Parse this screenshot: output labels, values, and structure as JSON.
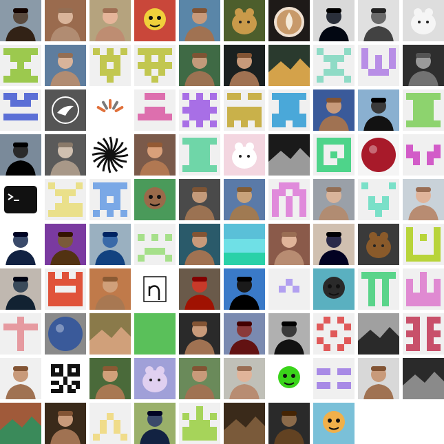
{
  "gallery": {
    "tiles": [
      {
        "kind": "photo",
        "name": "avatar-man-sunglasses",
        "bg": "#8a9aa8",
        "fg": "#5a4a3e",
        "shape": "person"
      },
      {
        "kind": "photo",
        "name": "avatar-bald-man-brick",
        "bg": "#9a6b4e",
        "fg": "#d9b49a",
        "shape": "person"
      },
      {
        "kind": "photo",
        "name": "avatar-smiling-hat",
        "bg": "#b5a37e",
        "fg": "#e6b59a",
        "shape": "person"
      },
      {
        "kind": "photo",
        "name": "avatar-cartoon-bird",
        "bg": "#c9473a",
        "fg": "#f0d03b",
        "shape": "cartoon"
      },
      {
        "kind": "photo",
        "name": "avatar-man-outdoor",
        "bg": "#5a86a8",
        "fg": "#c89a7a",
        "shape": "person"
      },
      {
        "kind": "photo",
        "name": "avatar-leopard",
        "bg": "#4d5e2c",
        "fg": "#c99a4a",
        "shape": "animal"
      },
      {
        "kind": "photo",
        "name": "avatar-latte-art",
        "bg": "#1e1a18",
        "fg": "#c89a6a",
        "shape": "cup"
      },
      {
        "kind": "photo",
        "name": "avatar-man-suit",
        "bg": "#d9d9d9",
        "fg": "#2a2f3a",
        "shape": "person"
      },
      {
        "kind": "photo",
        "name": "avatar-man-glasses-bw",
        "bg": "#e0e0e0",
        "fg": "#6a6a6a",
        "shape": "person"
      },
      {
        "kind": "photo",
        "name": "avatar-dogs-snow",
        "bg": "#dedede",
        "fg": "#f5f5f5",
        "shape": "animal"
      },
      {
        "kind": "identicon",
        "name": "identicon-green",
        "color": "#9cc94e",
        "pattern": "1111101110001000111011111"
      },
      {
        "kind": "photo",
        "name": "avatar-man-glasses-blue",
        "bg": "#5e7d9e",
        "fg": "#d9b49a",
        "shape": "person"
      },
      {
        "kind": "identicon",
        "name": "identicon-olive",
        "color": "#c2c750",
        "pattern": "1010101110010100111000100"
      },
      {
        "kind": "identicon",
        "name": "identicon-olive-2",
        "color": "#c2c750",
        "pattern": "1111101010111110101000100"
      },
      {
        "kind": "photo",
        "name": "avatar-man-park",
        "bg": "#3f6a45",
        "fg": "#c39a7a",
        "shape": "person"
      },
      {
        "kind": "photo",
        "name": "avatar-man-beard-dark",
        "bg": "#1a2020",
        "fg": "#c89a7a",
        "shape": "person"
      },
      {
        "kind": "photo",
        "name": "avatar-temple-lake",
        "bg": "#2a3a2e",
        "fg": "#d4a24a",
        "shape": "landscape"
      },
      {
        "kind": "identicon",
        "name": "identicon-mint",
        "color": "#8fdbc6",
        "pattern": "1000101110001000111010001"
      },
      {
        "kind": "identicon",
        "name": "identicon-violet",
        "color": "#b88ee6",
        "pattern": "1000110101101010111000000"
      },
      {
        "kind": "photo",
        "name": "avatar-man-bw-beard",
        "bg": "#2e2e2e",
        "fg": "#9a9a9a",
        "shape": "person"
      },
      {
        "kind": "identicon",
        "name": "identicon-blue",
        "color": "#5b6fd6",
        "pattern": "1101101110000001111100000"
      },
      {
        "kind": "photo",
        "name": "avatar-dove-logo",
        "bg": "#555555",
        "fg": "#ffffff",
        "shape": "logo"
      },
      {
        "kind": "photo",
        "name": "avatar-sunrise-rays",
        "bg": "#ffffff",
        "fg": "#e0703a",
        "shape": "rays"
      },
      {
        "kind": "identicon",
        "name": "identicon-pink",
        "color": "#dd6fae",
        "pattern": "0111000000011101111100000"
      },
      {
        "kind": "identicon",
        "name": "identicon-purple",
        "color": "#a86fe6",
        "pattern": "1010101110111110111010101"
      },
      {
        "kind": "identicon",
        "name": "identicon-mustard",
        "color": "#c9b14a",
        "pattern": "1101100000111111111110101"
      },
      {
        "kind": "identicon",
        "name": "identicon-teal",
        "color": "#4aa8d9",
        "pattern": "1111101110011101111111011"
      },
      {
        "kind": "photo",
        "name": "avatar-man-stage",
        "bg": "#3a5a9a",
        "fg": "#c89a7a",
        "shape": "person"
      },
      {
        "kind": "photo",
        "name": "avatar-man-city",
        "bg": "#8ab0d0",
        "fg": "#3a3a3a",
        "shape": "person"
      },
      {
        "kind": "identicon",
        "name": "identicon-lime",
        "color": "#8dd36e",
        "pattern": "1111101110011100111011111"
      },
      {
        "kind": "photo",
        "name": "avatar-man-mountains",
        "bg": "#7a8a9a",
        "fg": "#2a2a2a",
        "shape": "person"
      },
      {
        "kind": "photo",
        "name": "avatar-man-workshop",
        "bg": "#5a5a5a",
        "fg": "#d0c0b0",
        "shape": "person"
      },
      {
        "kind": "photo",
        "name": "avatar-black-sun",
        "bg": "#ffffff",
        "fg": "#111111",
        "shape": "sun"
      },
      {
        "kind": "photo",
        "name": "avatar-man-beard-smile",
        "bg": "#7a5a4a",
        "fg": "#d9a07a",
        "shape": "person"
      },
      {
        "kind": "identicon",
        "name": "identicon-seafoam",
        "color": "#6fd6a8",
        "pattern": "1111101110011100111011111"
      },
      {
        "kind": "photo",
        "name": "avatar-cat-flowers",
        "bg": "#f3d6e0",
        "fg": "#ffffff",
        "shape": "animal"
      },
      {
        "kind": "photo",
        "name": "avatar-dark-figure",
        "bg": "#1a1a1a",
        "fg": "#9a9a9a",
        "shape": "landscape"
      },
      {
        "kind": "identicon",
        "name": "identicon-green-box",
        "color": "#4ed48a",
        "pattern": "1111110001101011001111111"
      },
      {
        "kind": "photo",
        "name": "avatar-red-ball",
        "bg": "#f5f5f5",
        "fg": "#a81a2a",
        "shape": "ball"
      },
      {
        "kind": "identicon",
        "name": "identicon-magenta",
        "color": "#d25cc8",
        "pattern": "0000010001110110101000000"
      },
      {
        "kind": "photo",
        "name": "avatar-terminal-icon",
        "bg": "#ffffff",
        "fg": "#111111",
        "shape": "terminal"
      },
      {
        "kind": "identicon",
        "name": "identicon-cream",
        "color": "#eae08a",
        "pattern": "1000101110001000111111111"
      },
      {
        "kind": "identicon",
        "name": "identicon-sky",
        "color": "#7aa8e6",
        "pattern": "1111101110010100111010101"
      },
      {
        "kind": "photo",
        "name": "avatar-bitmoji",
        "bg": "#4a9a5a",
        "fg": "#9a6a4a",
        "shape": "cartoon"
      },
      {
        "kind": "photo",
        "name": "avatar-man-railing",
        "bg": "#4a4a4a",
        "fg": "#c39a7a",
        "shape": "person"
      },
      {
        "kind": "photo",
        "name": "avatar-man-hat-sunglasses",
        "bg": "#5a7aa8",
        "fg": "#c8a27a",
        "shape": "person"
      },
      {
        "kind": "identicon",
        "name": "identicon-orchid",
        "color": "#e08adb",
        "pattern": "0111011011101011010110101"
      },
      {
        "kind": "photo",
        "name": "avatar-man-living-room",
        "bg": "#9aa0a8",
        "fg": "#d9b49a",
        "shape": "person"
      },
      {
        "kind": "identicon",
        "name": "identicon-aqua",
        "color": "#7ae0c8",
        "pattern": "1000100000010100111000100"
      },
      {
        "kind": "photo",
        "name": "avatar-man-bowtie",
        "bg": "#c9d2d9",
        "fg": "#e0b49a",
        "shape": "person"
      },
      {
        "kind": "photo",
        "name": "avatar-man-glasses-white",
        "bg": "#ffffff",
        "fg": "#3a4a6a",
        "shape": "person"
      },
      {
        "kind": "photo",
        "name": "avatar-man-purple-bg",
        "bg": "#7a3aa0",
        "fg": "#7a5a3a",
        "shape": "person"
      },
      {
        "kind": "photo",
        "name": "avatar-man-blue-shirt",
        "bg": "#9ab0c0",
        "fg": "#3a6aa8",
        "shape": "person"
      },
      {
        "kind": "identicon",
        "name": "identicon-pale-green",
        "color": "#a6e08a",
        "pattern": "0000010101000000111010001"
      },
      {
        "kind": "photo",
        "name": "avatar-man-beard-glasses",
        "bg": "#2a5a6a",
        "fg": "#c89a7a",
        "shape": "person"
      },
      {
        "kind": "photo",
        "name": "avatar-turquoise-sea",
        "bg": "#2ad1a8",
        "fg": "#6fe0e6",
        "shape": "sea"
      },
      {
        "kind": "photo",
        "name": "avatar-man-sitting",
        "bg": "#8a5a4a",
        "fg": "#e0b49a",
        "shape": "person"
      },
      {
        "kind": "photo",
        "name": "avatar-woman-glasses",
        "bg": "#d0c0b0",
        "fg": "#2a2a4a",
        "shape": "person"
      },
      {
        "kind": "photo",
        "name": "avatar-monkey-plush",
        "bg": "#3a3a3a",
        "fg": "#8a5a2a",
        "shape": "animal"
      },
      {
        "kind": "identicon",
        "name": "identicon-yellow-green",
        "color": "#b8d43a",
        "pattern": "1000110101100011000111111"
      },
      {
        "kind": "photo",
        "name": "avatar-man-lab",
        "bg": "#c0b8b0",
        "fg": "#3a4a5a",
        "shape": "person"
      },
      {
        "kind": "identicon",
        "name": "identicon-red",
        "color": "#e0533a",
        "pattern": "1010111111100011111111111"
      },
      {
        "kind": "photo",
        "name": "avatar-woman-hat",
        "bg": "#c07a4a",
        "fg": "#d0a07a",
        "shape": "person"
      },
      {
        "kind": "photo",
        "name": "avatar-eta-symbol",
        "bg": "#ffffff",
        "fg": "#111111",
        "shape": "eta"
      },
      {
        "kind": "photo",
        "name": "avatar-man-red-cap",
        "bg": "#6a5a4a",
        "fg": "#c83a2a",
        "shape": "person"
      },
      {
        "kind": "photo",
        "name": "avatar-woman-hat-sky",
        "bg": "#3a7ac8",
        "fg": "#1a1a1a",
        "shape": "person"
      },
      {
        "kind": "identicon",
        "name": "identicon-lavender",
        "color": "#b2a0f0",
        "pattern": "0000000100010100000000000"
      },
      {
        "kind": "photo",
        "name": "avatar-cartoon-glasses",
        "bg": "#5ab0c0",
        "fg": "#2a2a2a",
        "shape": "cartoon"
      },
      {
        "kind": "identicon",
        "name": "identicon-emerald",
        "color": "#5ad48a",
        "pattern": "1111101010010100101001010"
      },
      {
        "kind": "identicon",
        "name": "identicon-pink-2",
        "color": "#e08ad2",
        "pattern": "0010010101101011111111111"
      },
      {
        "kind": "identicon",
        "name": "identicon-rose",
        "color": "#e69aa0",
        "pattern": "0010011111001000010000100"
      },
      {
        "kind": "photo",
        "name": "avatar-blue-ball",
        "bg": "#8a8a8a",
        "fg": "#3a5a9a",
        "shape": "ball"
      },
      {
        "kind": "photo",
        "name": "avatar-hands-table",
        "bg": "#8a7a4a",
        "fg": "#d0a07a",
        "shape": "landscape"
      },
      {
        "kind": "photo",
        "name": "avatar-green-square",
        "bg": "#5ac05a",
        "fg": "#5ac05a",
        "shape": "solid"
      },
      {
        "kind": "photo",
        "name": "avatar-man-beard-dark-bg",
        "bg": "#2a2a2a",
        "fg": "#c89a7a",
        "shape": "person"
      },
      {
        "kind": "photo",
        "name": "avatar-man-canyon",
        "bg": "#7a8ab0",
        "fg": "#8a3a3a",
        "shape": "person"
      },
      {
        "kind": "photo",
        "name": "avatar-man-bw-profile",
        "bg": "#b0b0b0",
        "fg": "#3a3a3a",
        "shape": "person"
      },
      {
        "kind": "identicon",
        "name": "identicon-coral",
        "color": "#e05a5a",
        "pattern": "0101010001001001000101010"
      },
      {
        "kind": "photo",
        "name": "avatar-silhouette-dog",
        "bg": "#a0a0a0",
        "fg": "#2a2a2a",
        "shape": "landscape"
      },
      {
        "kind": "identicon",
        "name": "identicon-crimson",
        "color": "#c8506a",
        "pattern": "1101101010110110101011011"
      },
      {
        "kind": "photo",
        "name": "avatar-man-beard-white",
        "bg": "#f0f0f0",
        "fg": "#c89a7a",
        "shape": "person"
      },
      {
        "kind": "photo",
        "name": "avatar-qr-code",
        "bg": "#ffffff",
        "fg": "#111111",
        "shape": "qr"
      },
      {
        "kind": "photo",
        "name": "avatar-man-tie",
        "bg": "#4a6a3a",
        "fg": "#d0a07a",
        "shape": "person"
      },
      {
        "kind": "photo",
        "name": "avatar-blurry-cat",
        "bg": "#a0a0d8",
        "fg": "#e0d0f0",
        "shape": "animal"
      },
      {
        "kind": "photo",
        "name": "avatar-man-plaid",
        "bg": "#6a8a5a",
        "fg": "#c89a7a",
        "shape": "person"
      },
      {
        "kind": "photo",
        "name": "avatar-woman-striped",
        "bg": "#c0c0b8",
        "fg": "#e0b49a",
        "shape": "person"
      },
      {
        "kind": "photo",
        "name": "avatar-green-robot",
        "bg": "#ffffff",
        "fg": "#3ad41a",
        "shape": "cartoon"
      },
      {
        "kind": "identicon",
        "name": "identicon-periwinkle",
        "color": "#a88ae6",
        "pattern": "0000011011000001101100000"
      },
      {
        "kind": "photo",
        "name": "avatar-man-shirt-check",
        "bg": "#d8d8d8",
        "fg": "#c89a7a",
        "shape": "person"
      },
      {
        "kind": "photo",
        "name": "avatar-metal-machine",
        "bg": "#2a2a2a",
        "fg": "#8a8a8a",
        "shape": "landscape"
      },
      {
        "kind": "photo",
        "name": "avatar-climber-rock",
        "bg": "#a05a3a",
        "fg": "#3a8a5a",
        "shape": "landscape"
      },
      {
        "kind": "photo",
        "name": "avatar-man-glasses-smile",
        "bg": "#3a2a1a",
        "fg": "#c89a7a",
        "shape": "person"
      },
      {
        "kind": "identicon",
        "name": "identicon-butter",
        "color": "#f0dc8a",
        "pattern": "0000000100010100101010001"
      },
      {
        "kind": "photo",
        "name": "avatar-man-suit-outdoor",
        "bg": "#9ab06a",
        "fg": "#3a4a6a",
        "shape": "person"
      },
      {
        "kind": "identicon",
        "name": "identicon-lime-2",
        "color": "#a6d45a",
        "pattern": "0010010101011101111111111"
      },
      {
        "kind": "photo",
        "name": "avatar-dark-hands",
        "bg": "#3a2a1a",
        "fg": "#7a5a3a",
        "shape": "landscape"
      },
      {
        "kind": "photo",
        "name": "avatar-man-smiling-dark",
        "bg": "#2a2a2a",
        "fg": "#8a6a4a",
        "shape": "person"
      },
      {
        "kind": "photo",
        "name": "avatar-phineas-cartoon",
        "bg": "#7ac0d8",
        "fg": "#f0b04a",
        "shape": "cartoon"
      },
      {
        "kind": "empty",
        "name": "empty-slot"
      },
      {
        "kind": "empty",
        "name": "empty-slot"
      }
    ]
  }
}
